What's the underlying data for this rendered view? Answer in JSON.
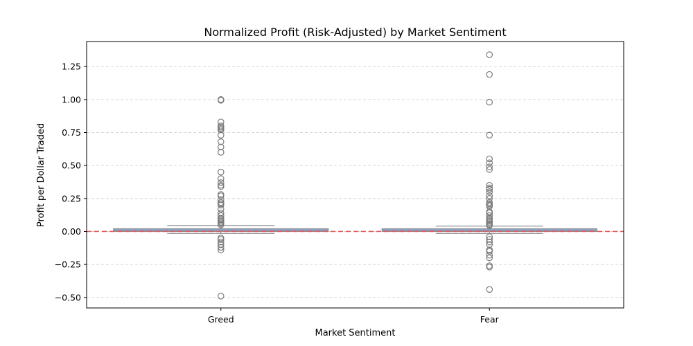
{
  "chart_data": {
    "type": "box",
    "title": "Normalized Profit (Risk-Adjusted) by Market Sentiment",
    "xlabel": "Market Sentiment",
    "ylabel": "Profit per Dollar Traded",
    "categories": [
      "Greed",
      "Fear"
    ],
    "ylim": [
      -0.58,
      1.44
    ],
    "yticks": [
      -0.5,
      -0.25,
      0.0,
      0.25,
      0.5,
      0.75,
      1.0,
      1.25
    ],
    "ytick_labels": [
      "−0.50",
      "−0.25",
      "0.00",
      "0.25",
      "0.50",
      "0.75",
      "1.00",
      "1.25"
    ],
    "grid": "y, dashed",
    "reference_line": {
      "y": 0.0,
      "style": "dashed",
      "color": "#e05a5a"
    },
    "box_color": "#8fa9d8",
    "whisker_color": "#8c8c8c",
    "boxes": [
      {
        "category": "Greed",
        "q1": 0.0,
        "median": 0.005,
        "q3": 0.02,
        "whisker_low": -0.015,
        "whisker_high": 0.045,
        "outliers": [
          1.0,
          0.998,
          0.995,
          0.83,
          0.8,
          0.79,
          0.78,
          0.77,
          0.73,
          0.68,
          0.64,
          0.6,
          0.45,
          0.4,
          0.37,
          0.35,
          0.34,
          0.28,
          0.27,
          0.24,
          0.22,
          0.21,
          0.2,
          0.17,
          0.14,
          0.12,
          0.1,
          0.09,
          0.08,
          0.07,
          0.06,
          0.05,
          -0.05,
          -0.06,
          -0.08,
          -0.1,
          -0.12,
          -0.14,
          -0.49
        ]
      },
      {
        "category": "Fear",
        "q1": 0.0,
        "median": 0.005,
        "q3": 0.02,
        "whisker_low": -0.015,
        "whisker_high": 0.04,
        "outliers": [
          1.34,
          1.19,
          0.98,
          0.73,
          0.55,
          0.52,
          0.49,
          0.47,
          0.35,
          0.33,
          0.32,
          0.3,
          0.27,
          0.25,
          0.22,
          0.21,
          0.2,
          0.19,
          0.15,
          0.14,
          0.12,
          0.1,
          0.09,
          0.08,
          0.07,
          0.06,
          0.05,
          0.045,
          -0.04,
          -0.06,
          -0.08,
          -0.1,
          -0.14,
          -0.15,
          -0.18,
          -0.2,
          -0.26,
          -0.27,
          -0.44
        ]
      }
    ]
  }
}
